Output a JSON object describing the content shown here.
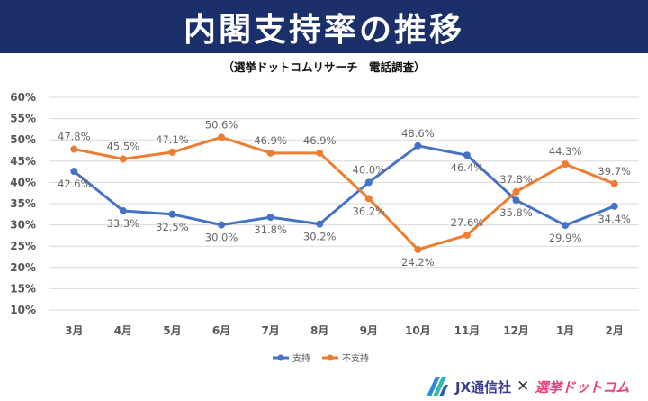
{
  "header": {
    "title": "内閣支持率の推移",
    "subtitle": "（選挙ドットコムリサーチ　電話調査）"
  },
  "chart_data": {
    "type": "line",
    "title": "内閣支持率の推移",
    "subtitle": "（選挙ドットコムリサーチ　電話調査）",
    "categories": [
      "3月",
      "4月",
      "5月",
      "6月",
      "7月",
      "8月",
      "9月",
      "10月",
      "11月",
      "12月",
      "1月",
      "2月"
    ],
    "y_ticks": [
      10,
      15,
      20,
      25,
      30,
      35,
      40,
      45,
      50,
      55,
      60
    ],
    "y_tick_labels": [
      "10%",
      "15%",
      "20%",
      "25%",
      "30%",
      "35%",
      "40%",
      "45%",
      "50%",
      "55%",
      "60%"
    ],
    "ylim": [
      10,
      60
    ],
    "grid": true,
    "legend_position": "bottom",
    "series": [
      {
        "name": "支持",
        "color": "#4472c4",
        "values": [
          42.6,
          33.3,
          32.5,
          30.0,
          31.8,
          30.2,
          40.0,
          48.6,
          46.4,
          35.8,
          29.9,
          34.4
        ],
        "labels": [
          "42.6%",
          "33.3%",
          "32.5%",
          "30.0%",
          "31.8%",
          "30.2%",
          "40.0%",
          "48.6%",
          "46.4%",
          "35.8%",
          "29.9%",
          "34.4%"
        ],
        "label_side": [
          "below",
          "below",
          "below",
          "below",
          "below",
          "below",
          "above",
          "above",
          "below",
          "below",
          "below",
          "below"
        ]
      },
      {
        "name": "不支持",
        "color": "#ed7d31",
        "values": [
          47.8,
          45.5,
          47.1,
          50.6,
          46.9,
          46.9,
          36.2,
          24.2,
          27.6,
          37.8,
          44.3,
          39.7
        ],
        "labels": [
          "47.8%",
          "45.5%",
          "47.1%",
          "50.6%",
          "46.9%",
          "46.9%",
          "36.2%",
          "24.2%",
          "27.6%",
          "37.8%",
          "44.3%",
          "39.7%"
        ],
        "label_side": [
          "above",
          "above",
          "above",
          "above",
          "above",
          "above",
          "below",
          "below",
          "above",
          "above",
          "above",
          "above"
        ]
      }
    ]
  },
  "footer": {
    "brand1": "JX通信社",
    "separator": "✕",
    "brand2": "選挙ドットコム"
  }
}
